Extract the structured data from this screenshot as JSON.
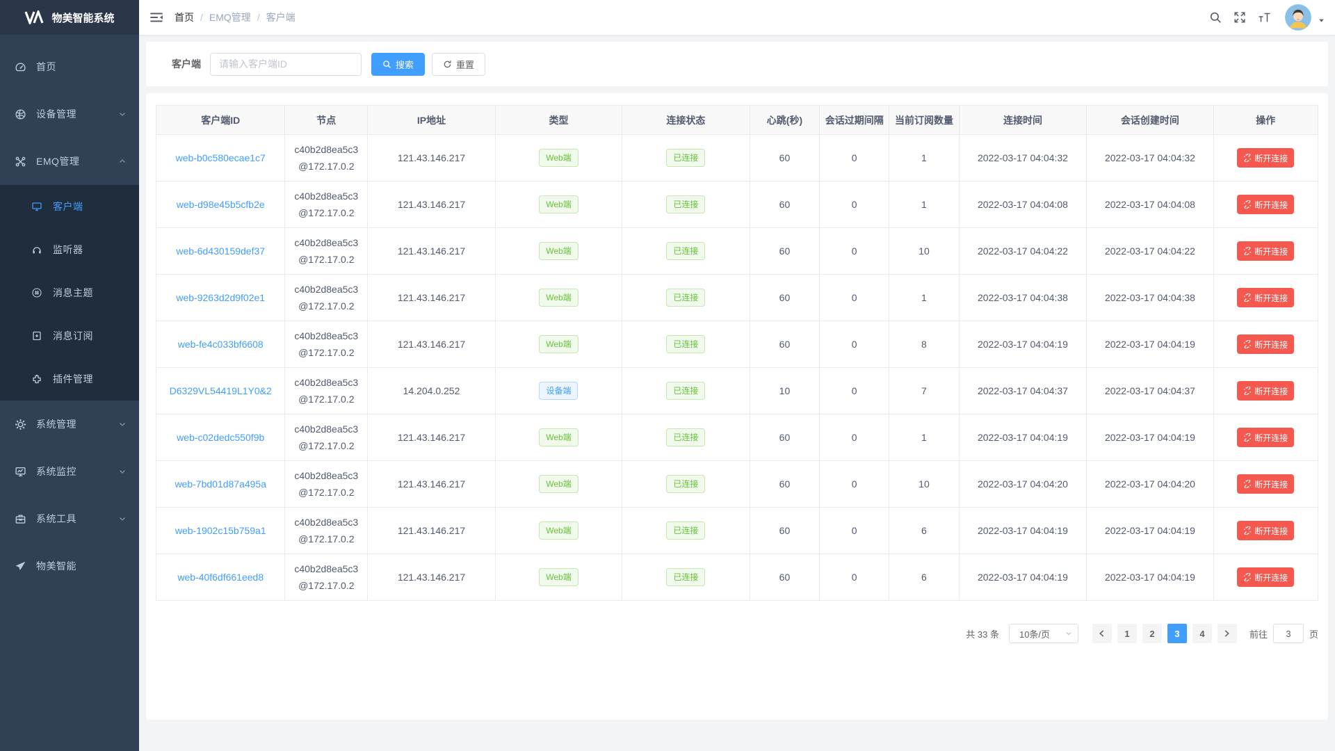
{
  "app": {
    "title": "物美智能系统"
  },
  "colors": {
    "accent": "#409eff",
    "success": "#67c23a",
    "danger": "#f5584e",
    "sidebar_bg": "#304156",
    "submenu_bg": "#1f2d3d"
  },
  "sidebar": {
    "logo_text": "物美智能系统",
    "logo_icon": "logo-icon",
    "items": [
      {
        "id": "home",
        "label": "首页",
        "icon": "dashboard-icon",
        "active": false,
        "chevron": null
      },
      {
        "id": "device",
        "label": "设备管理",
        "icon": "device-icon",
        "active": false,
        "chevron": "down"
      },
      {
        "id": "emq",
        "label": "EMQ管理",
        "icon": "emq-icon",
        "active": false,
        "chevron": "up",
        "submenu": [
          {
            "id": "client",
            "label": "客户端",
            "icon": "client-icon",
            "active": true
          },
          {
            "id": "listener",
            "label": "监听器",
            "icon": "listener-icon",
            "active": false
          },
          {
            "id": "topic",
            "label": "消息主题",
            "icon": "topic-icon",
            "active": false
          },
          {
            "id": "subscribe",
            "label": "消息订阅",
            "icon": "subscribe-icon",
            "active": false
          },
          {
            "id": "plugin",
            "label": "插件管理",
            "icon": "plugin-icon",
            "active": false
          }
        ]
      },
      {
        "id": "system",
        "label": "系统管理",
        "icon": "gear-icon",
        "active": false,
        "chevron": "down"
      },
      {
        "id": "monitor",
        "label": "系统监控",
        "icon": "monitor-icon",
        "active": false,
        "chevron": "down"
      },
      {
        "id": "tools",
        "label": "系统工具",
        "icon": "toolbox-icon",
        "active": false,
        "chevron": "down"
      },
      {
        "id": "wumei",
        "label": "物美智能",
        "icon": "paper-plane-icon",
        "active": false,
        "chevron": null
      }
    ]
  },
  "navbar": {
    "breadcrumb": [
      "首页",
      "EMQ管理",
      "客户端"
    ],
    "right_icons": [
      "search-icon",
      "fullscreen-icon",
      "font-size-icon"
    ]
  },
  "search": {
    "label": "客户端",
    "placeholder": "请输入客户端ID",
    "value": "",
    "search_label": "搜索",
    "reset_label": "重置"
  },
  "table": {
    "headers": [
      "客户端ID",
      "节点",
      "IP地址",
      "类型",
      "连接状态",
      "心跳(秒)",
      "会话过期间隔",
      "当前订阅数量",
      "连接时间",
      "会话创建时间",
      "操作"
    ],
    "action_label": "断开连接",
    "rows": [
      {
        "client_id": "web-b0c580ecae1c7",
        "node_line1": "c40b2d8ea5c3",
        "node_line2": "@172.17.0.2",
        "ip": "121.43.146.217",
        "type": "Web端",
        "type_style": "green",
        "status": "已连接",
        "heartbeat": "60",
        "session_expiry": "0",
        "subscriptions": "1",
        "connected_at": "2022-03-17 04:04:32",
        "created_at": "2022-03-17 04:04:32"
      },
      {
        "client_id": "web-d98e45b5cfb2e",
        "node_line1": "c40b2d8ea5c3",
        "node_line2": "@172.17.0.2",
        "ip": "121.43.146.217",
        "type": "Web端",
        "type_style": "green",
        "status": "已连接",
        "heartbeat": "60",
        "session_expiry": "0",
        "subscriptions": "1",
        "connected_at": "2022-03-17 04:04:08",
        "created_at": "2022-03-17 04:04:08"
      },
      {
        "client_id": "web-6d430159def37",
        "node_line1": "c40b2d8ea5c3",
        "node_line2": "@172.17.0.2",
        "ip": "121.43.146.217",
        "type": "Web端",
        "type_style": "green",
        "status": "已连接",
        "heartbeat": "60",
        "session_expiry": "0",
        "subscriptions": "10",
        "connected_at": "2022-03-17 04:04:22",
        "created_at": "2022-03-17 04:04:22"
      },
      {
        "client_id": "web-9263d2d9f02e1",
        "node_line1": "c40b2d8ea5c3",
        "node_line2": "@172.17.0.2",
        "ip": "121.43.146.217",
        "type": "Web端",
        "type_style": "green",
        "status": "已连接",
        "heartbeat": "60",
        "session_expiry": "0",
        "subscriptions": "1",
        "connected_at": "2022-03-17 04:04:38",
        "created_at": "2022-03-17 04:04:38"
      },
      {
        "client_id": "web-fe4c033bf6608",
        "node_line1": "c40b2d8ea5c3",
        "node_line2": "@172.17.0.2",
        "ip": "121.43.146.217",
        "type": "Web端",
        "type_style": "green",
        "status": "已连接",
        "heartbeat": "60",
        "session_expiry": "0",
        "subscriptions": "8",
        "connected_at": "2022-03-17 04:04:19",
        "created_at": "2022-03-17 04:04:19"
      },
      {
        "client_id": "D6329VL54419L1Y0&2",
        "node_line1": "c40b2d8ea5c3",
        "node_line2": "@172.17.0.2",
        "ip": "14.204.0.252",
        "type": "设备端",
        "type_style": "blue",
        "status": "已连接",
        "heartbeat": "10",
        "session_expiry": "0",
        "subscriptions": "7",
        "connected_at": "2022-03-17 04:04:37",
        "created_at": "2022-03-17 04:04:37"
      },
      {
        "client_id": "web-c02dedc550f9b",
        "node_line1": "c40b2d8ea5c3",
        "node_line2": "@172.17.0.2",
        "ip": "121.43.146.217",
        "type": "Web端",
        "type_style": "green",
        "status": "已连接",
        "heartbeat": "60",
        "session_expiry": "0",
        "subscriptions": "1",
        "connected_at": "2022-03-17 04:04:19",
        "created_at": "2022-03-17 04:04:19"
      },
      {
        "client_id": "web-7bd01d87a495a",
        "node_line1": "c40b2d8ea5c3",
        "node_line2": "@172.17.0.2",
        "ip": "121.43.146.217",
        "type": "Web端",
        "type_style": "green",
        "status": "已连接",
        "heartbeat": "60",
        "session_expiry": "0",
        "subscriptions": "10",
        "connected_at": "2022-03-17 04:04:20",
        "created_at": "2022-03-17 04:04:20"
      },
      {
        "client_id": "web-1902c15b759a1",
        "node_line1": "c40b2d8ea5c3",
        "node_line2": "@172.17.0.2",
        "ip": "121.43.146.217",
        "type": "Web端",
        "type_style": "green",
        "status": "已连接",
        "heartbeat": "60",
        "session_expiry": "0",
        "subscriptions": "6",
        "connected_at": "2022-03-17 04:04:19",
        "created_at": "2022-03-17 04:04:19"
      },
      {
        "client_id": "web-40f6df661eed8",
        "node_line1": "c40b2d8ea5c3",
        "node_line2": "@172.17.0.2",
        "ip": "121.43.146.217",
        "type": "Web端",
        "type_style": "green",
        "status": "已连接",
        "heartbeat": "60",
        "session_expiry": "0",
        "subscriptions": "6",
        "connected_at": "2022-03-17 04:04:19",
        "created_at": "2022-03-17 04:04:19"
      }
    ]
  },
  "pagination": {
    "total_text": "共 33 条",
    "page_size": "10条/页",
    "pages": [
      "1",
      "2",
      "3",
      "4"
    ],
    "active_page": "3",
    "goto_label": "前往",
    "goto_value": "3",
    "goto_suffix": "页"
  }
}
